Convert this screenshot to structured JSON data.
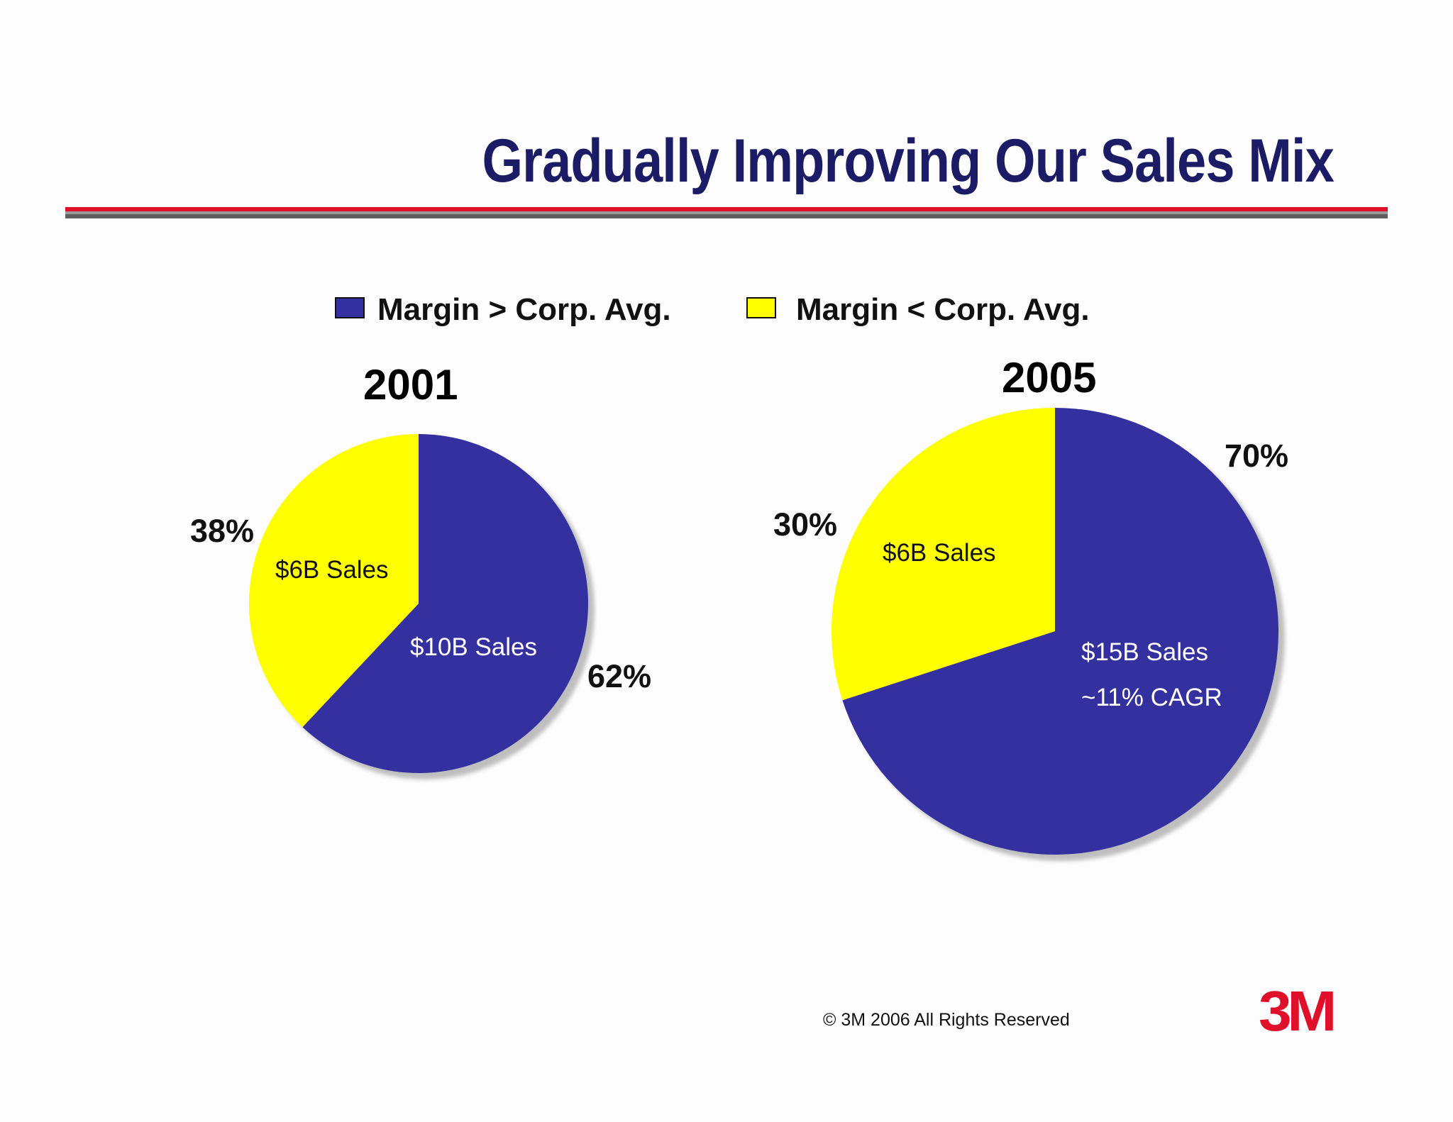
{
  "title": "Gradually Improving Our Sales Mix",
  "legend": [
    {
      "label": "Margin > Corp. Avg.",
      "color": "#3430a0"
    },
    {
      "label": "Margin < Corp. Avg.",
      "color": "#ffff00"
    }
  ],
  "chart_data": [
    {
      "type": "pie",
      "title": "2001",
      "slices": [
        {
          "name": "Margin > Corp. Avg.",
          "percent": 62,
          "sales_label": "$10B Sales",
          "pct_label": "62%",
          "color": "#3430a0"
        },
        {
          "name": "Margin < Corp. Avg.",
          "percent": 38,
          "sales_label": "$6B Sales",
          "pct_label": "38%",
          "color": "#ffff00"
        }
      ]
    },
    {
      "type": "pie",
      "title": "2005",
      "slices": [
        {
          "name": "Margin > Corp. Avg.",
          "percent": 70,
          "sales_label": "$15B Sales",
          "extra_label": "~11% CAGR",
          "pct_label": "70%",
          "color": "#3430a0"
        },
        {
          "name": "Margin < Corp. Avg.",
          "percent": 30,
          "sales_label": "$6B Sales",
          "pct_label": "30%",
          "color": "#ffff00"
        }
      ]
    }
  ],
  "footer": {
    "copyright": "© 3M 2006 All Rights Reserved"
  },
  "logo_text": "3M"
}
